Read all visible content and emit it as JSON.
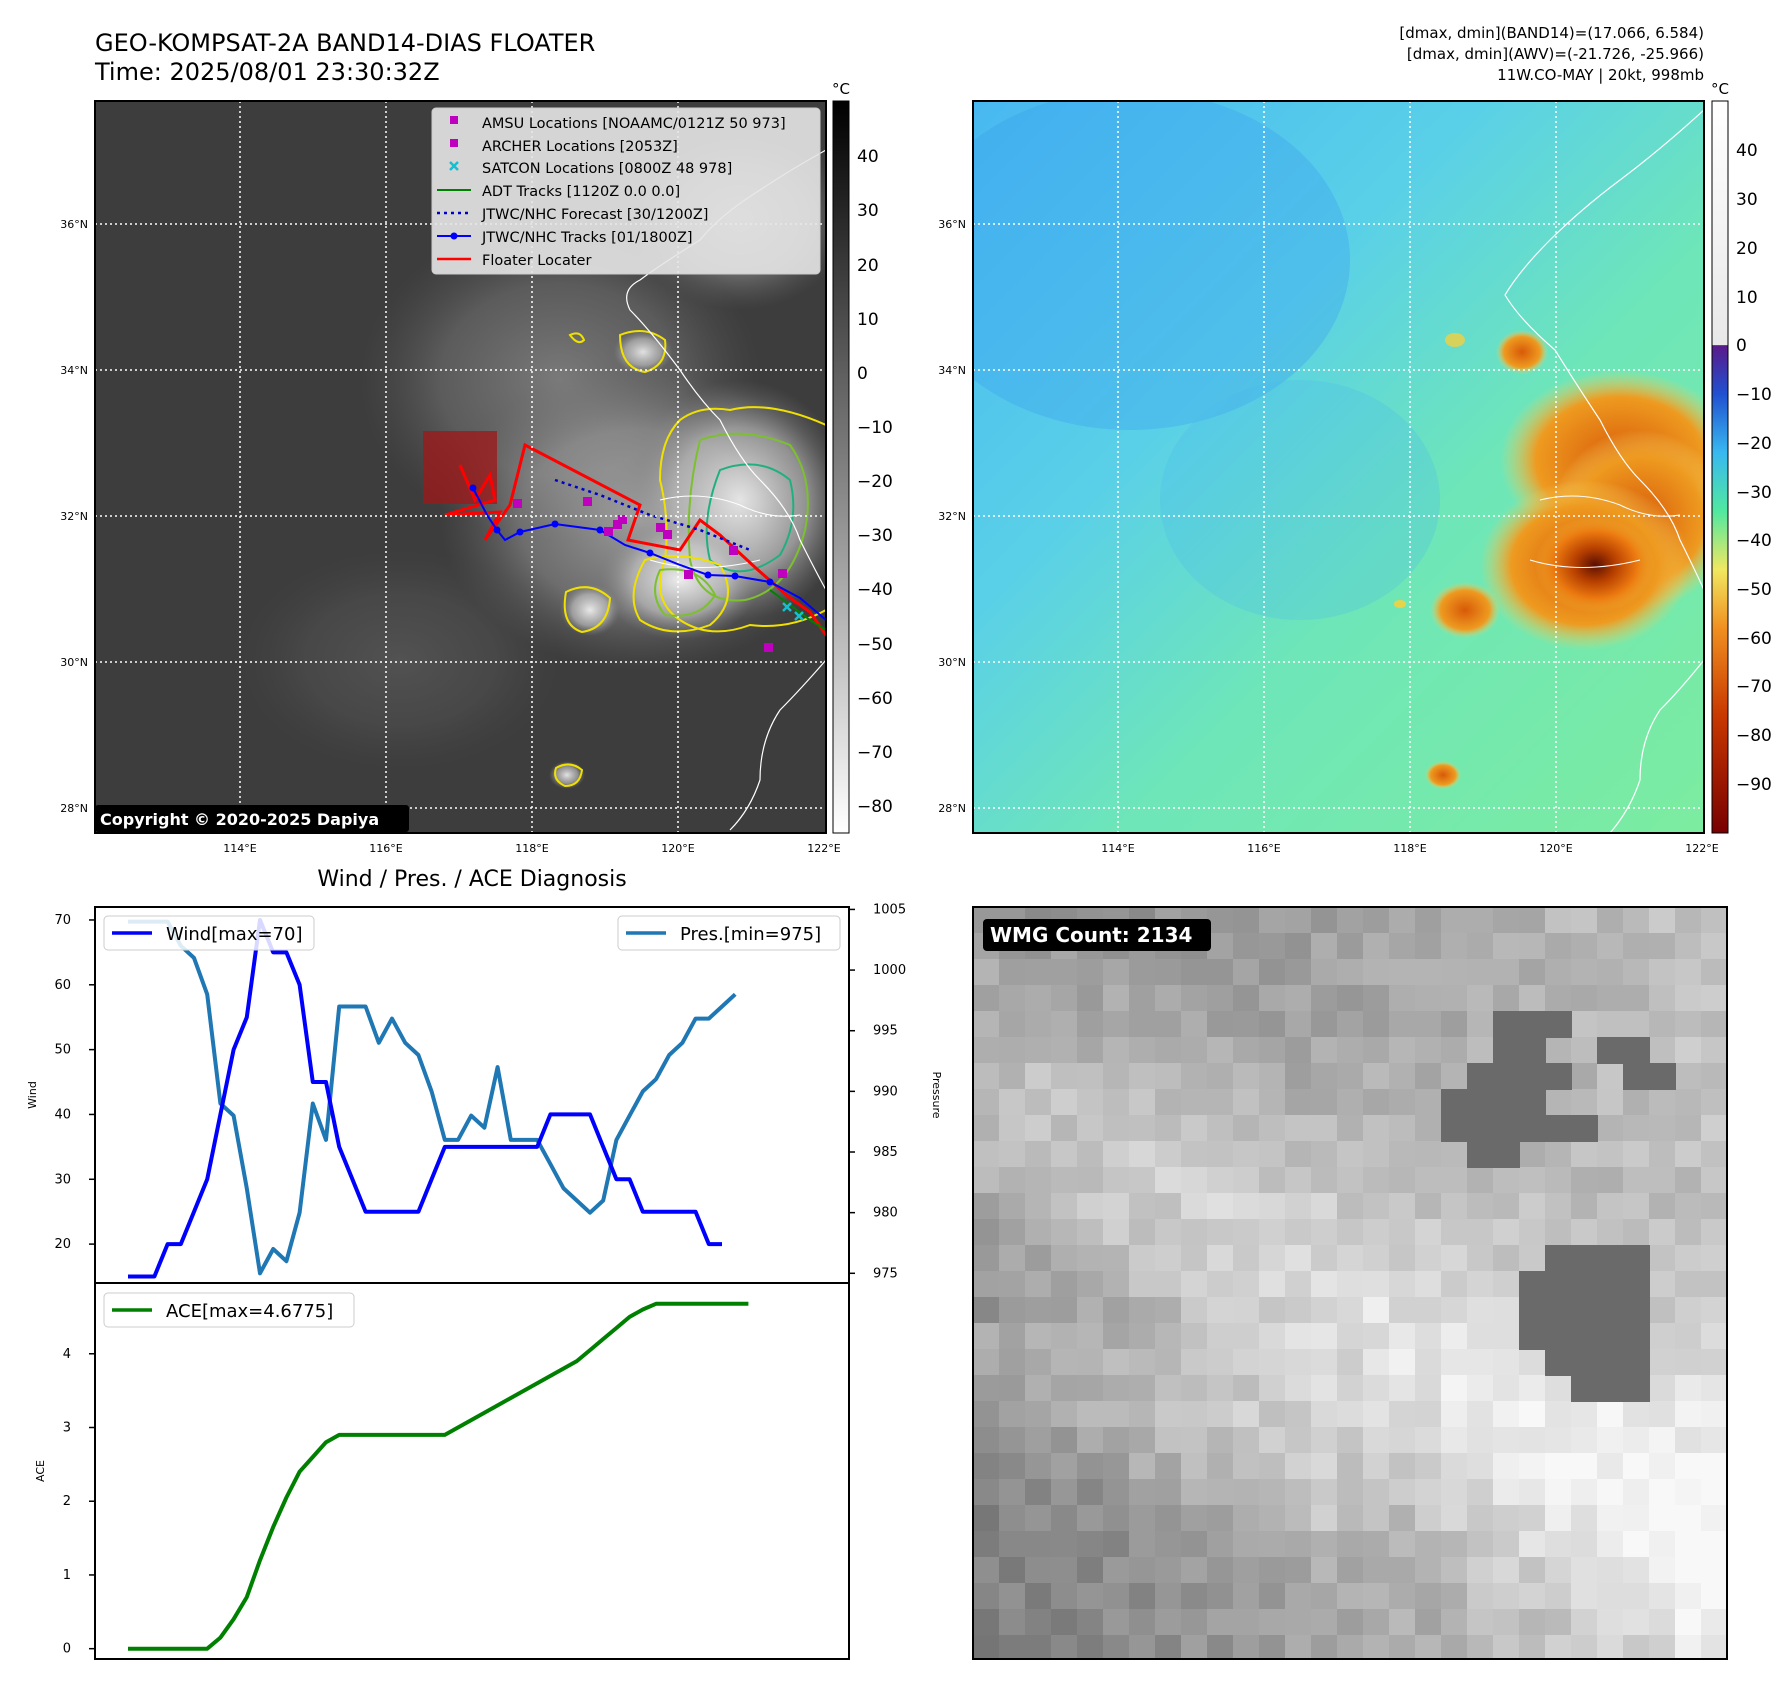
{
  "header": {
    "title": "GEO-KOMPSAT-2A BAND14-DIAS FLOATER",
    "time": "Time: 2025/08/01 23:30:32Z",
    "info_line1": "[dmax, dmin](BAND14)=(17.066, 6.584)",
    "info_line2": "[dmax, dmin](AWV)=(-21.726, -25.966)",
    "info_line3": "11W.CO-MAY | 20kt, 998mb"
  },
  "colors": {
    "wind": "#0000ff",
    "pressure": "#1f77b4",
    "ace": "#008000",
    "floater": "#ff0000",
    "track": "#0000ff",
    "amsu": "#bf00bf",
    "satcon": "#17becf"
  },
  "map": {
    "lat_labels": [
      "36°N",
      "34°N",
      "32°N",
      "30°N",
      "28°N"
    ],
    "lon_labels": [
      "114°E",
      "116°E",
      "118°E",
      "120°E",
      "122°E"
    ],
    "copyright": "Copyright © 2020-2025 Dapiya",
    "colorbar_unit": "°C",
    "ir_ticks": [
      "40",
      "30",
      "20",
      "10",
      "0",
      "−10",
      "−20",
      "−30",
      "−40",
      "−50",
      "−60",
      "−70",
      "−80"
    ],
    "awv_ticks": [
      "40",
      "30",
      "20",
      "10",
      "0",
      "−10",
      "−20",
      "−30",
      "−40",
      "−50",
      "−60",
      "−70",
      "−80",
      "−90"
    ],
    "legend": [
      {
        "label": "AMSU Locations [NOAAMC/0121Z 50 973]",
        "icon": "square-marker"
      },
      {
        "label": "ARCHER Locations [2053Z]",
        "icon": "square-marker"
      },
      {
        "label": "SATCON Locations [0800Z 48 978]",
        "icon": "x-marker"
      },
      {
        "label": "ADT Tracks [1120Z 0.0 0.0]",
        "icon": "green-line"
      },
      {
        "label": "JTWC/NHC Forecast [30/1200Z]",
        "icon": "dotted-line"
      },
      {
        "label": "JTWC/NHC Tracks [01/1800Z]",
        "icon": "dot-line"
      },
      {
        "label": "Floater Locater",
        "icon": "red-line"
      }
    ]
  },
  "diagnosis": {
    "title": "Wind / Pres. / ACE Diagnosis",
    "wind_ylabel": "Wind",
    "pres_ylabel": "Pressure",
    "ace_ylabel": "ACE",
    "wind_legend": "Wind[max=70]",
    "pres_legend": "Pres.[min=975]",
    "ace_legend": "ACE[max=4.6775]"
  },
  "wmg": {
    "label": "WMG Count: 2134"
  },
  "chart_data": [
    {
      "type": "line",
      "title": "Wind / Pres. / ACE Diagnosis",
      "ylabel": "Wind",
      "ylim": [
        14,
        72
      ],
      "yticks": [
        20,
        30,
        40,
        50,
        60,
        70
      ],
      "series": [
        {
          "name": "Wind[max=70]",
          "values": [
            15,
            15,
            15,
            20,
            20,
            25,
            30,
            40,
            50,
            55,
            70,
            65,
            65,
            60,
            45,
            45,
            35,
            30,
            25,
            25,
            25,
            25,
            25,
            30,
            35,
            35,
            35,
            35,
            35,
            35,
            35,
            35,
            40,
            40,
            40,
            40,
            35,
            30,
            30,
            25,
            25,
            25,
            25,
            25,
            20,
            20
          ]
        }
      ]
    },
    {
      "type": "line",
      "ylabel": "Pressure",
      "ylim": [
        974.2,
        1005.2
      ],
      "yticks": [
        975,
        980,
        985,
        990,
        995,
        1000,
        1005
      ],
      "series": [
        {
          "name": "Pres.[min=975]",
          "values": [
            1004,
            1004,
            1004,
            1004,
            1002,
            1001,
            998,
            989,
            988,
            982,
            975,
            977,
            976,
            980,
            989,
            986,
            997,
            997,
            997,
            994,
            996,
            994,
            993,
            990,
            986,
            986,
            988,
            987,
            992,
            986,
            986,
            986,
            984,
            982,
            981,
            980,
            981,
            986,
            988,
            990,
            991,
            993,
            994,
            996,
            996,
            997,
            998
          ]
        }
      ]
    },
    {
      "type": "area",
      "ylabel": "ACE",
      "ylim": [
        -0.14,
        4.96
      ],
      "yticks": [
        0,
        1,
        2,
        3,
        4
      ],
      "series": [
        {
          "name": "ACE[max=4.6775]",
          "values": [
            0,
            0,
            0,
            0,
            0,
            0,
            0,
            0.15,
            0.4,
            0.7,
            1.2,
            1.65,
            2.05,
            2.4,
            2.6,
            2.8,
            2.9,
            2.9,
            2.9,
            2.9,
            2.9,
            2.9,
            2.9,
            2.9,
            2.9,
            3.0,
            3.1,
            3.2,
            3.3,
            3.4,
            3.5,
            3.6,
            3.7,
            3.8,
            3.9,
            4.05,
            4.2,
            4.35,
            4.5,
            4.6,
            4.6775,
            4.6775,
            4.6775,
            4.6775,
            4.6775,
            4.6775,
            4.6775,
            4.6775
          ]
        }
      ]
    }
  ]
}
